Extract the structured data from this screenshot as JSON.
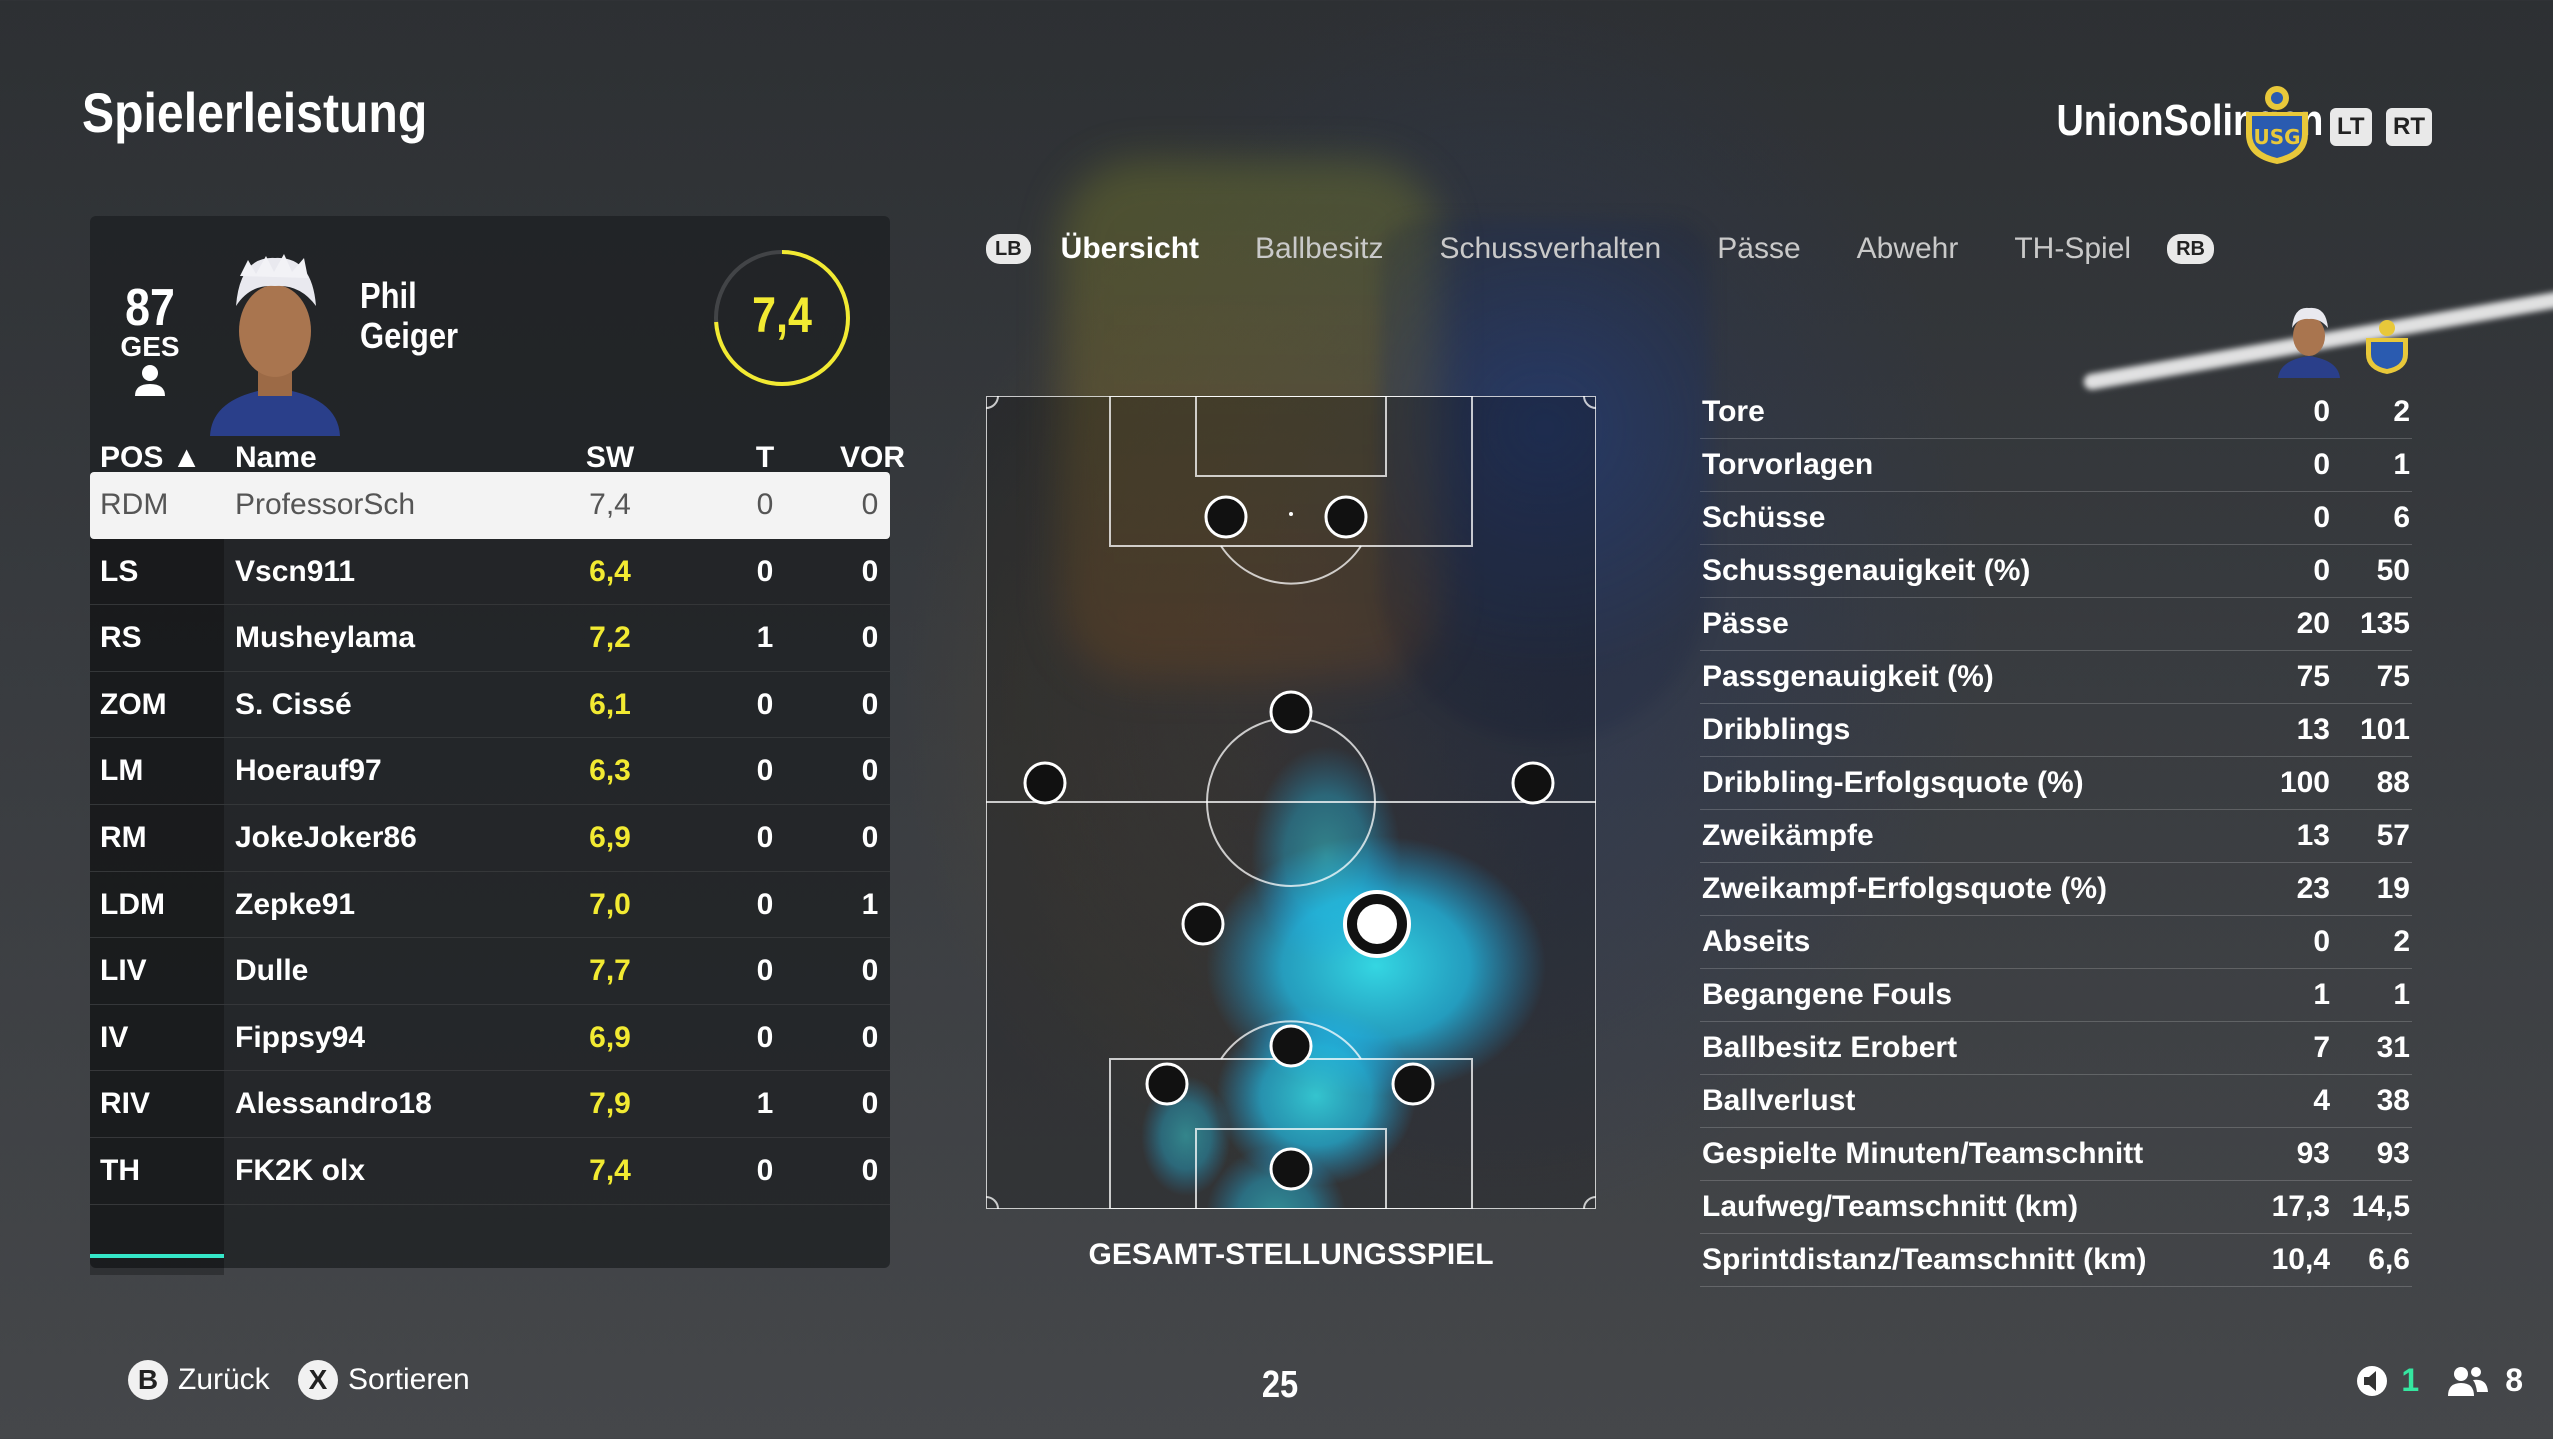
{
  "header": {
    "title": "Spielerleistung",
    "team_name": "UnionSolingen",
    "crest_label": "USG"
  },
  "triggers": {
    "left": "LT",
    "right": "RT"
  },
  "player": {
    "overall": "87",
    "overall_label": "GES",
    "first_name": "Phil",
    "last_name": "Geiger",
    "match_rating": "7,4"
  },
  "table": {
    "headers": {
      "pos": "POS ▲",
      "name": "Name",
      "rating": "SW",
      "goals": "T",
      "assists": "VOR"
    },
    "rows": [
      {
        "pos": "RDM",
        "name": "ProfessorSch",
        "rating": "7,4",
        "goals": "0",
        "assists": "0",
        "selected": true
      },
      {
        "pos": "LS",
        "name": "Vscn911",
        "rating": "6,4",
        "goals": "0",
        "assists": "0"
      },
      {
        "pos": "RS",
        "name": "Musheylama",
        "rating": "7,2",
        "goals": "1",
        "assists": "0"
      },
      {
        "pos": "ZOM",
        "name": "S. Cissé",
        "rating": "6,1",
        "goals": "0",
        "assists": "0"
      },
      {
        "pos": "LM",
        "name": "Hoerauf97",
        "rating": "6,3",
        "goals": "0",
        "assists": "0"
      },
      {
        "pos": "RM",
        "name": "JokeJoker86",
        "rating": "6,9",
        "goals": "0",
        "assists": "0"
      },
      {
        "pos": "LDM",
        "name": "Zepke91",
        "rating": "7,0",
        "goals": "0",
        "assists": "1"
      },
      {
        "pos": "LIV",
        "name": "Dulle",
        "rating": "7,7",
        "goals": "0",
        "assists": "0"
      },
      {
        "pos": "IV",
        "name": "Fippsy94",
        "rating": "6,9",
        "goals": "0",
        "assists": "0"
      },
      {
        "pos": "RIV",
        "name": "Alessandro18",
        "rating": "7,9",
        "goals": "1",
        "assists": "0"
      },
      {
        "pos": "TH",
        "name": "FK2K olx",
        "rating": "7,4",
        "goals": "0",
        "assists": "0"
      }
    ]
  },
  "tabs": {
    "left_bumper": "LB",
    "right_bumper": "RB",
    "items": [
      "Übersicht",
      "Ballbesitz",
      "Schussverhalten",
      "Pässe",
      "Abwehr",
      "TH-Spiel"
    ],
    "active": "Übersicht"
  },
  "pitch": {
    "caption": "GESAMT-STELLUNGSSPIEL"
  },
  "stats": [
    {
      "label": "Tore",
      "player": "0",
      "team": "2"
    },
    {
      "label": "Torvorlagen",
      "player": "0",
      "team": "1"
    },
    {
      "label": "Schüsse",
      "player": "0",
      "team": "6"
    },
    {
      "label": "Schussgenauigkeit (%)",
      "player": "0",
      "team": "50"
    },
    {
      "label": "Pässe",
      "player": "20",
      "team": "135"
    },
    {
      "label": "Passgenauigkeit (%)",
      "player": "75",
      "team": "75"
    },
    {
      "label": "Dribblings",
      "player": "13",
      "team": "101"
    },
    {
      "label": "Dribbling-Erfolgsquote (%)",
      "player": "100",
      "team": "88"
    },
    {
      "label": "Zweikämpfe",
      "player": "13",
      "team": "57"
    },
    {
      "label": "Zweikampf-Erfolgsquote (%)",
      "player": "23",
      "team": "19"
    },
    {
      "label": "Abseits",
      "player": "0",
      "team": "2"
    },
    {
      "label": "Begangene Fouls",
      "player": "1",
      "team": "1"
    },
    {
      "label": "Ballbesitz Erobert",
      "player": "7",
      "team": "31"
    },
    {
      "label": "Ballverlust",
      "player": "4",
      "team": "38"
    },
    {
      "label": "Gespielte Minuten/Teamschnitt",
      "player": "93",
      "team": "93"
    },
    {
      "label": "Laufweg/Teamschnitt (km)",
      "player": "17,3",
      "team": "14,5"
    },
    {
      "label": "Sprintdistanz/Teamschnitt (km)",
      "player": "10,4",
      "team": "6,6"
    }
  ],
  "footer": {
    "back_key": "B",
    "back_label": "Zurück",
    "sort_key": "X",
    "sort_label": "Sortieren",
    "page_number": "25",
    "mic_count": "1",
    "players_count": "8"
  },
  "colors": {
    "accent": "#35e6c8",
    "rating": "#f2ea32",
    "heatmap": "#1fe8ff"
  }
}
